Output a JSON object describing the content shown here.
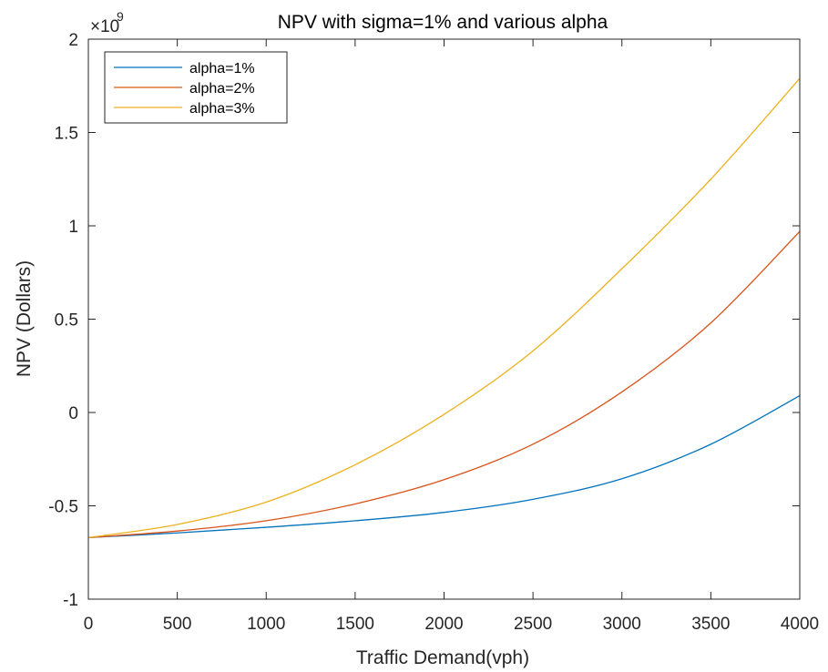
{
  "chart_data": {
    "type": "line",
    "title": "NPV with sigma=1% and various alpha",
    "xlabel": "Traffic Demand(vph)",
    "ylabel": "NPV (Dollars)",
    "y_multiplier_base": "×10",
    "y_multiplier_exponent": "9",
    "xlim": [
      0,
      4000
    ],
    "ylim": [
      -1,
      2
    ],
    "x_ticks": [
      0,
      500,
      1000,
      1500,
      2000,
      2500,
      3000,
      3500,
      4000
    ],
    "x_tick_labels": [
      "0",
      "500",
      "1000",
      "1500",
      "2000",
      "2500",
      "3000",
      "3500",
      "4000"
    ],
    "y_ticks": [
      -1,
      -0.5,
      0,
      0.5,
      1,
      1.5,
      2
    ],
    "y_tick_labels": [
      "-1",
      "-0.5",
      "0",
      "0.5",
      "1",
      "1.5",
      "2"
    ],
    "grid": false,
    "legend_position": "top-left",
    "x": [
      0,
      500,
      1000,
      1500,
      2000,
      2500,
      3000,
      3500,
      4000
    ],
    "series": [
      {
        "name": "alpha=1%",
        "color": "#0072BD",
        "values": [
          -0.67,
          -0.645,
          -0.615,
          -0.58,
          -0.535,
          -0.465,
          -0.355,
          -0.17,
          0.09
        ]
      },
      {
        "name": "alpha=2%",
        "color": "#D95319",
        "values": [
          -0.67,
          -0.635,
          -0.58,
          -0.49,
          -0.36,
          -0.17,
          0.11,
          0.48,
          0.97
        ]
      },
      {
        "name": "alpha=3%",
        "color": "#EDB120",
        "values": [
          -0.67,
          -0.6,
          -0.48,
          -0.28,
          -0.01,
          0.33,
          0.77,
          1.25,
          1.79
        ]
      }
    ]
  }
}
